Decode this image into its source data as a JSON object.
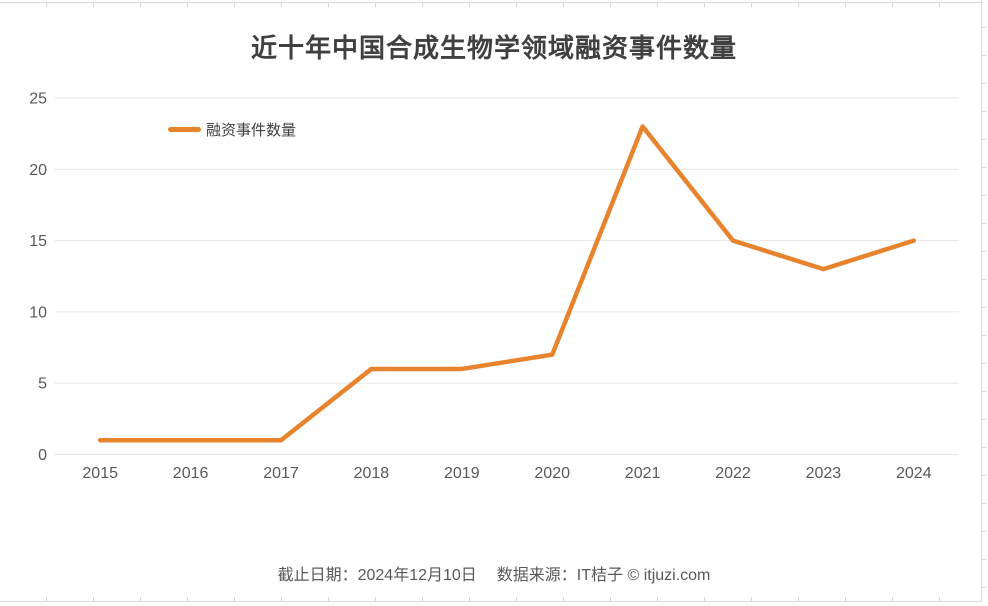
{
  "chart_data": {
    "type": "line",
    "title": "近十年中国合成生物学领域融资事件数量",
    "categories": [
      "2015",
      "2016",
      "2017",
      "2018",
      "2019",
      "2020",
      "2021",
      "2022",
      "2023",
      "2024"
    ],
    "series": [
      {
        "name": "融资事件数量",
        "values": [
          1,
          1,
          1,
          6,
          6,
          7,
          23,
          15,
          13,
          15
        ],
        "color": "#E8832D"
      }
    ],
    "xlabel": "",
    "ylabel": "",
    "ylim": [
      0,
      25
    ],
    "ytick_step": 5,
    "yticks": [
      0,
      5,
      10,
      15,
      20,
      25
    ],
    "grid": "horizontal",
    "legend_position": "top-left"
  },
  "footer": {
    "cutoff": "截止日期：2024年12月10日",
    "source": "数据来源：IT桔子 © itjuzi.com"
  },
  "colors": {
    "line": "#E8832D",
    "gridline": "#E7E7E7",
    "axis_text": "#595959",
    "title_text": "#404040",
    "footer_text": "#595959",
    "sheet_grid": "#D9D9D9",
    "background": "#FFFFFF"
  }
}
